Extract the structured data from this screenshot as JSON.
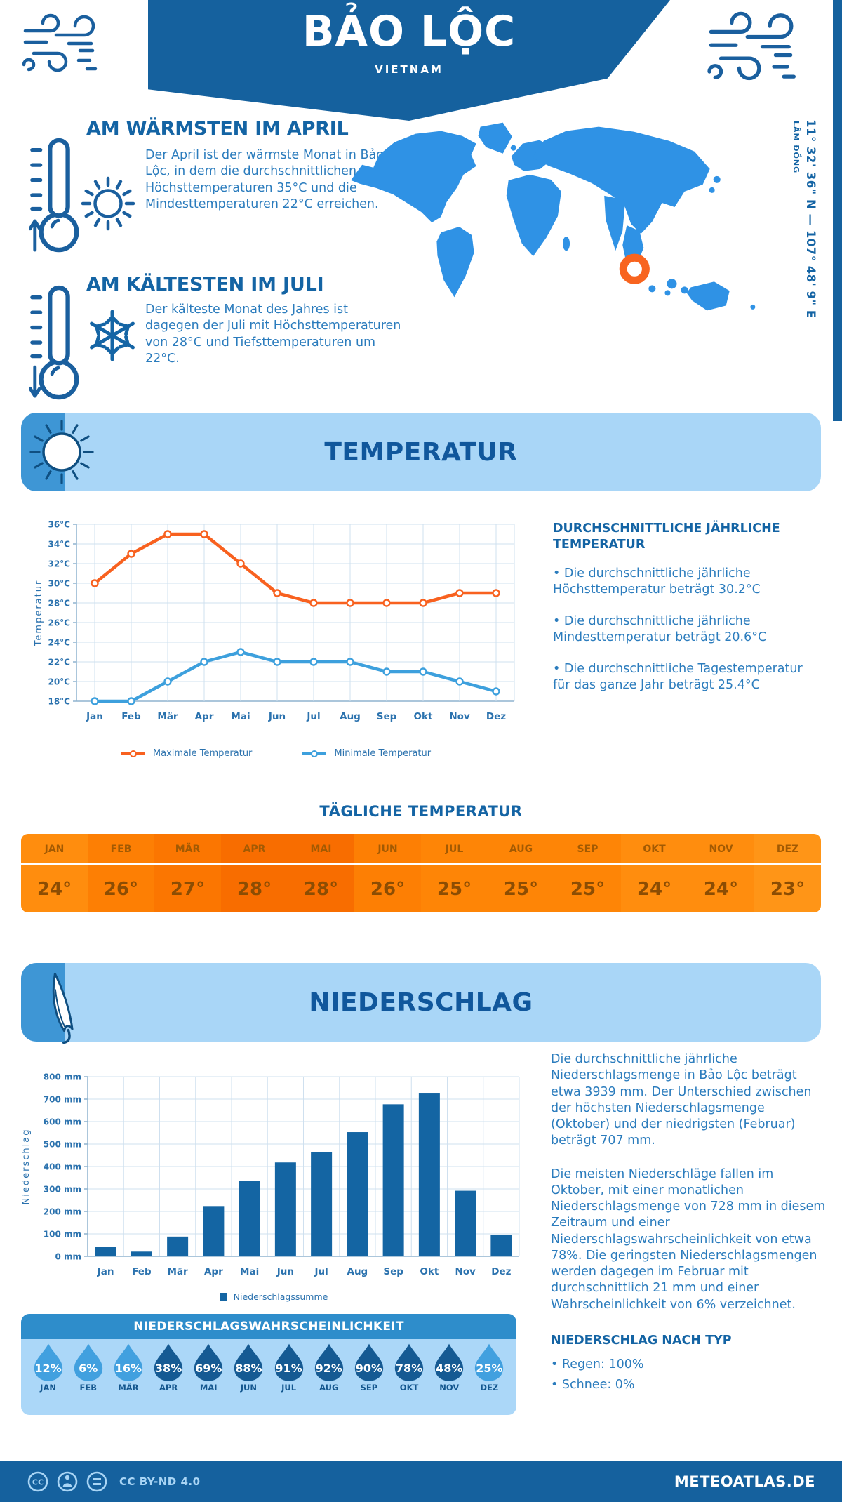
{
  "colors": {
    "dark_blue": "#15619e",
    "heading_blue": "#1464a4",
    "text_blue": "#2b7cbd",
    "light_blue_panel": "#a9d6f7",
    "medium_blue": "#2e8dcb",
    "cap_blue": "#3e96d5",
    "map_blue": "#2f92e5",
    "accent_orange": "#f8641f",
    "bar_blue": "#1465a3"
  },
  "header": {
    "title": "BẢO LỘC",
    "subtitle": "VIETNAM"
  },
  "warmest": {
    "title": "AM WÄRMSTEN IM APRIL",
    "text": "Der April ist der wärmste Monat in Bảo Lộc, in dem die durchschnittlichen Höchsttemperaturen 35°C und die Mindesttemperaturen 22°C erreichen."
  },
  "coldest": {
    "title": "AM KÄLTESTEN IM JULI",
    "text": "Der kälteste Monat des Jahres ist dagegen der Juli mit Höchsttemperaturen von 28°C und Tiefsttemperaturen um 22°C."
  },
  "map": {
    "coordinates": "11° 32' 36\" N — 107° 48' 9\" E",
    "region": "LÂM ĐỒNG"
  },
  "temperature_section": {
    "title": "TEMPERATUR",
    "annual_heading": "DURCHSCHNITTLICHE JÄHRLICHE TEMPERATUR",
    "annual_bullets": [
      "• Die durchschnittliche jährliche Höchsttemperatur beträgt 30.2°C",
      "• Die durchschnittliche jährliche Mindesttemperatur beträgt 20.6°C",
      "• Die durchschnittliche Tagestemperatur für das ganze Jahr beträgt 25.4°C"
    ]
  },
  "daily_table": {
    "title": "TÄGLICHE TEMPERATUR",
    "months": [
      "JAN",
      "FEB",
      "MÄR",
      "APR",
      "MAI",
      "JUN",
      "JUL",
      "AUG",
      "SEP",
      "OKT",
      "NOV",
      "DEZ"
    ],
    "values": [
      "24°",
      "26°",
      "27°",
      "28°",
      "28°",
      "26°",
      "25°",
      "25°",
      "25°",
      "24°",
      "24°",
      "23°"
    ],
    "cell_colors": [
      "#ff8d0e",
      "#fd7f04",
      "#fb7601",
      "#f86d00",
      "#f86d00",
      "#fd7f04",
      "#fe8506",
      "#fe8506",
      "#fe8506",
      "#ff8d0e",
      "#ff8d0e",
      "#ff9517"
    ],
    "month_text_color": "#a25a03",
    "value_text_color": "#8c4d03"
  },
  "precipitation_section": {
    "title": "NIEDERSCHLAG",
    "paragraphs": [
      "Die durchschnittliche jährliche Niederschlagsmenge in Bảo Lộc beträgt etwa 3939 mm. Der Unterschied zwischen der höchsten Niederschlagsmenge (Oktober) und der niedrigsten (Februar) beträgt 707 mm.",
      "Die meisten Niederschläge fallen im Oktober, mit einer monatlichen Niederschlagsmenge von 728 mm in diesem Zeitraum und einer Niederschlagswahrscheinlichkeit von etwa 78%. Die geringsten Niederschlagsmengen werden dagegen im Februar mit durchschnittlich 21 mm und einer Wahrscheinlichkeit von 6% verzeichnet."
    ],
    "by_type_heading": "NIEDERSCHLAG NACH TYP",
    "by_type": [
      "• Regen: 100%",
      "• Schnee: 0%"
    ]
  },
  "probability": {
    "title": "NIEDERSCHLAGSWAHRSCHEINLICHKEIT",
    "months": [
      "JAN",
      "FEB",
      "MÄR",
      "APR",
      "MAI",
      "JUN",
      "JUL",
      "AUG",
      "SEP",
      "OKT",
      "NOV",
      "DEZ"
    ],
    "values": [
      "12%",
      "6%",
      "16%",
      "38%",
      "69%",
      "88%",
      "91%",
      "92%",
      "90%",
      "78%",
      "48%",
      "25%"
    ],
    "drop_light_color": "#41a0df",
    "drop_dark_color": "#155a93"
  },
  "footer": {
    "license": "CC BY-ND 4.0",
    "site": "METEOATLAS.DE"
  },
  "icons": {
    "header_left": "wind-icon",
    "header_right": "wind-icon",
    "warmest": [
      "thermometer-up-icon",
      "sun-icon"
    ],
    "coldest": [
      "thermometer-down-icon",
      "snowflake-icon"
    ],
    "temperature_banner": "sun-icon",
    "precipitation_banner": "umbrella-icon",
    "probability": "water-drop-icon",
    "map_marker": "location-ring-icon",
    "footer": [
      "cc-icon",
      "person-icon",
      "equals-icon"
    ]
  },
  "chart_data": [
    {
      "type": "line",
      "title": "",
      "categories": [
        "Jan",
        "Feb",
        "Mär",
        "Apr",
        "Mai",
        "Jun",
        "Jul",
        "Aug",
        "Sep",
        "Okt",
        "Nov",
        "Dez"
      ],
      "series": [
        {
          "name": "Maximale Temperatur",
          "color": "#f8611f",
          "values": [
            30,
            33,
            35,
            35,
            32,
            29,
            28,
            28,
            28,
            28,
            29,
            29
          ]
        },
        {
          "name": "Minimale Temperatur",
          "color": "#3da0dd",
          "values": [
            18,
            18,
            20,
            22,
            23,
            22,
            22,
            22,
            21,
            21,
            20,
            19
          ]
        }
      ],
      "xlabel": "",
      "ylabel": "Temperatur",
      "ylim": [
        18,
        36
      ],
      "ytick_step": 2,
      "ytick_suffix": "°C",
      "grid": true,
      "legend_position": "bottom"
    },
    {
      "type": "bar",
      "title": "",
      "categories": [
        "Jan",
        "Feb",
        "Mär",
        "Apr",
        "Mai",
        "Jun",
        "Jul",
        "Aug",
        "Sep",
        "Okt",
        "Nov",
        "Dez"
      ],
      "series": [
        {
          "name": "Niederschlagssumme",
          "color": "#1465a3",
          "values": [
            42,
            21,
            88,
            224,
            337,
            418,
            465,
            553,
            677,
            728,
            292,
            94
          ]
        }
      ],
      "xlabel": "",
      "ylabel": "Niederschlag",
      "ylim": [
        0,
        800
      ],
      "ytick_step": 100,
      "ytick_suffix": " mm",
      "grid": true,
      "legend_position": "bottom"
    }
  ]
}
